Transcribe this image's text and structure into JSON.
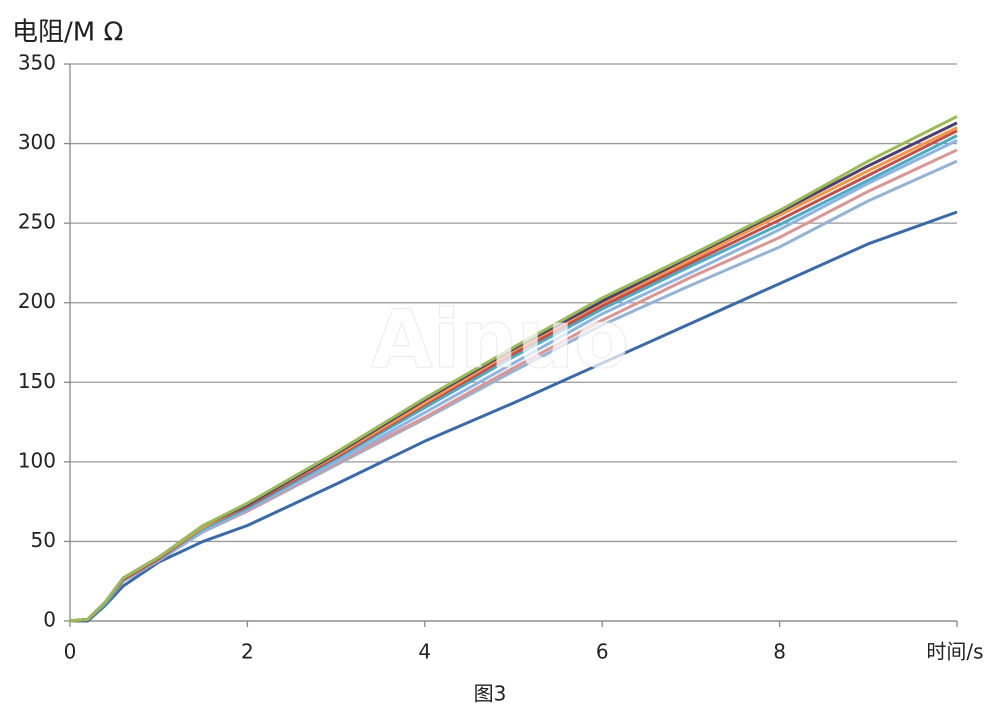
{
  "chart_data": {
    "type": "line",
    "y_label": "电阻/M Ω",
    "x_label": "时间/s",
    "caption": "图3",
    "watermark": "Ainuo",
    "x": [
      0,
      0.2,
      0.4,
      0.6,
      1,
      1.5,
      2,
      3,
      4,
      5,
      6,
      7,
      8,
      9,
      10
    ],
    "series": [
      {
        "color": "#9bbb59",
        "values": [
          0,
          1,
          12,
          27,
          40,
          60,
          74,
          106,
          140,
          172,
          203,
          230,
          258,
          289,
          317
        ]
      },
      {
        "color": "#4f3f6f",
        "values": [
          0,
          1,
          12,
          27,
          40,
          60,
          73,
          105,
          139,
          171,
          201,
          229,
          257,
          286,
          313
        ]
      },
      {
        "color": "#f79646",
        "values": [
          0,
          1,
          12,
          27,
          40,
          59,
          73,
          104,
          137,
          170,
          200,
          227,
          255,
          283,
          310
        ]
      },
      {
        "color": "#c0504d",
        "values": [
          0,
          1,
          12,
          26,
          39,
          59,
          72,
          103,
          136,
          168,
          198,
          225,
          252,
          280,
          308
        ]
      },
      {
        "color": "#4bacc6",
        "values": [
          0,
          1,
          11,
          26,
          39,
          58,
          71,
          102,
          134,
          166,
          196,
          223,
          249,
          277,
          305
        ]
      },
      {
        "color": "#8eb4e3",
        "values": [
          0,
          1,
          11,
          26,
          38,
          57,
          70,
          100,
          131,
          162,
          193,
          219,
          246,
          275,
          302
        ]
      },
      {
        "color": "#d99694",
        "values": [
          0,
          1,
          11,
          26,
          38,
          57,
          69,
          99,
          128,
          159,
          189,
          216,
          241,
          270,
          296
        ]
      },
      {
        "color": "#95b3d7",
        "values": [
          0,
          1,
          11,
          25,
          38,
          56,
          69,
          98,
          127,
          157,
          186,
          211,
          235,
          264,
          289
        ]
      },
      {
        "color": "#3b6aa8",
        "values": [
          0,
          0,
          10,
          22,
          37,
          50,
          60,
          86,
          113,
          137,
          162,
          187,
          212,
          237,
          257
        ]
      }
    ],
    "xlim": [
      0,
      10
    ],
    "xticks": [
      0,
      2,
      4,
      6,
      8
    ],
    "ylim": [
      0,
      350
    ],
    "yticks": [
      0,
      50,
      100,
      150,
      200,
      250,
      300,
      350
    ],
    "grid": true
  }
}
